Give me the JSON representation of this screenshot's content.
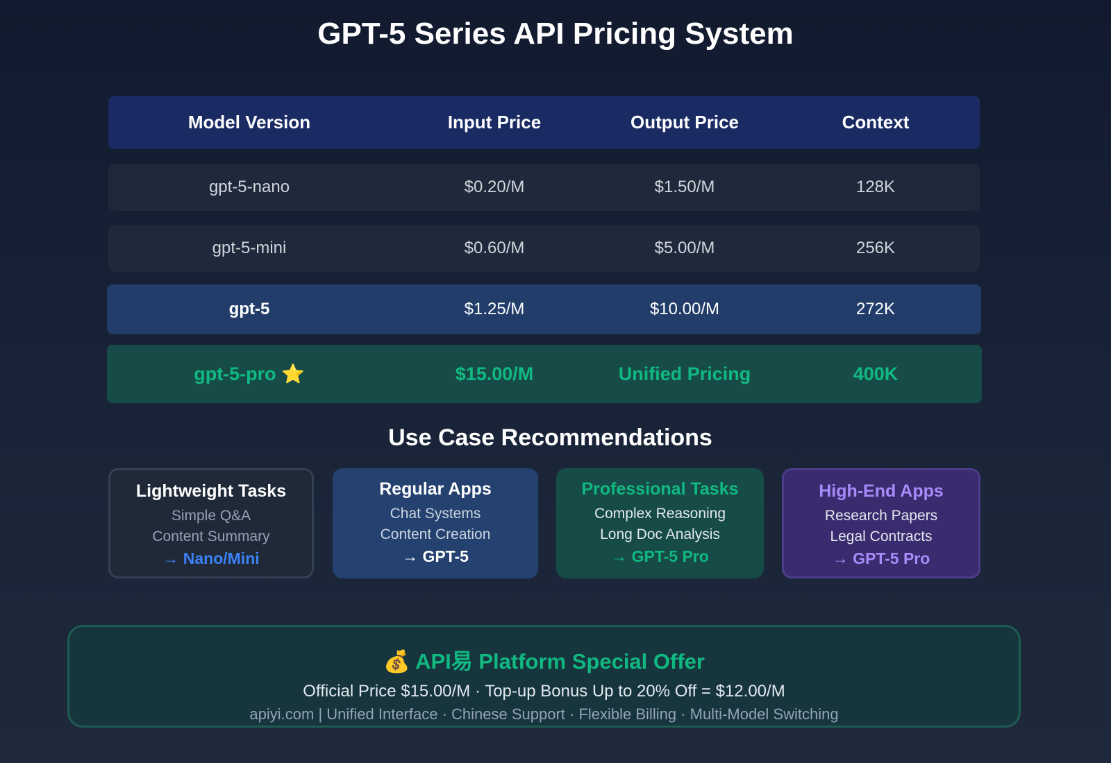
{
  "title": "GPT-5 Series API Pricing System",
  "table": {
    "headers": [
      "Model Version",
      "Input Price",
      "Output Price",
      "Context"
    ],
    "rows": [
      [
        "gpt-5-nano",
        "$0.20/M",
        "$1.50/M",
        "128K"
      ],
      [
        "gpt-5-mini",
        "$0.60/M",
        "$5.00/M",
        "256K"
      ],
      [
        "gpt-5",
        "$1.25/M",
        "$10.00/M",
        "272K"
      ],
      [
        "gpt-5-pro ⭐",
        "$15.00/M",
        "Unified Pricing",
        "400K"
      ]
    ]
  },
  "use_cases": {
    "title": "Use Case Recommendations",
    "cards": [
      {
        "title": "Lightweight Tasks",
        "lines": [
          "Simple Q&A",
          "Content Summary"
        ],
        "rec": "→ Nano/Mini"
      },
      {
        "title": "Regular Apps",
        "lines": [
          "Chat Systems",
          "Content Creation"
        ],
        "rec": "→ GPT-5"
      },
      {
        "title": "Professional Tasks",
        "lines": [
          "Complex Reasoning",
          "Long Doc Analysis"
        ],
        "rec": "→ GPT-5 Pro"
      },
      {
        "title": "High-End Apps",
        "lines": [
          "Research Papers",
          "Legal Contracts"
        ],
        "rec": "→ GPT-5 Pro"
      }
    ]
  },
  "offer": {
    "heading": "💰 API易 Platform Special Offer",
    "price_line": "Official Price $15.00/M · Top-up Bonus Up to 20% Off = $12.00/M",
    "sub_line": "apiyi.com | Unified Interface · Chinese Support · Flexible Billing · Multi-Model Switching"
  },
  "colors": {
    "accent_green": "#10b981",
    "accent_blue": "#3b82f6",
    "accent_purple": "#a78bfa",
    "header_bg": "#1a2a63"
  }
}
